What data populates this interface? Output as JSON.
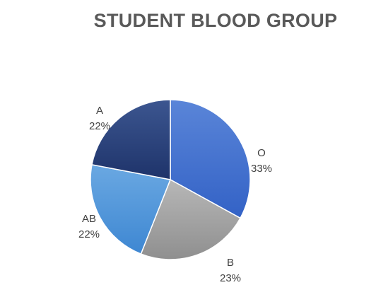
{
  "chart_data": {
    "type": "pie",
    "title": "STUDENT BLOOD GROUP",
    "slices": [
      {
        "label": "O",
        "value": 33,
        "percent_label": "33%",
        "color_light": "#5a85d8",
        "color_dark": "#3362c6"
      },
      {
        "label": "B",
        "value": 23,
        "percent_label": "23%",
        "color_light": "#b7b7b7",
        "color_dark": "#8f8f8f"
      },
      {
        "label": "AB",
        "value": 22,
        "percent_label": "22%",
        "color_light": "#6aa8e2",
        "color_dark": "#3e87d2"
      },
      {
        "label": "A",
        "value": 22,
        "percent_label": "22%",
        "color_light": "#3c5690",
        "color_dark": "#1e336a"
      }
    ],
    "start": "12 o'clock",
    "direction": "clockwise",
    "legend": "none"
  }
}
